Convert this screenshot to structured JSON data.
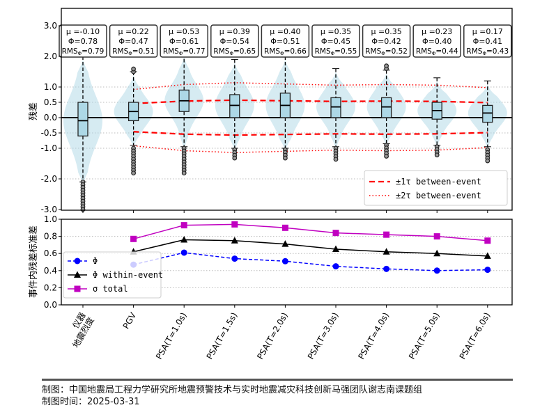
{
  "chart_data": [
    {
      "type": "boxplot-violin",
      "ylabel": "残差",
      "ylim": [
        -3,
        3
      ],
      "yticks": [
        "3.0",
        "2.0",
        "1.0",
        "0.5",
        "0.0",
        "-0.5",
        "-1.0",
        "-2.0",
        "-3.0"
      ],
      "ytick_values": [
        3,
        2,
        1,
        0.5,
        0,
        -0.5,
        -1,
        -2,
        -3
      ],
      "grid": "dotted horizontal at ticks",
      "categories": [
        "仪器\n地震烈度",
        "PGV",
        "PSA(T=1.0s)",
        "PSA(T=1.5s)",
        "PSA(T=2.0s)",
        "PSA(T=3.0s)",
        "PSA(T=4.0s)",
        "PSA(T=5.0s)",
        "PSA(T=6.0s)"
      ],
      "boxes": [
        {
          "q1": -0.6,
          "median": -0.1,
          "q3": 0.5,
          "whislo": -2.1,
          "whishi": 2.0,
          "out_lo": [
            -2.1,
            -3.0
          ],
          "out_hi": []
        },
        {
          "q1": -0.1,
          "median": 0.2,
          "q3": 0.5,
          "whislo": -0.9,
          "whishi": 1.5,
          "out_lo": [
            -1.0,
            -1.9
          ],
          "out_hi": [
            1.5,
            1.65
          ]
        },
        {
          "q1": 0.2,
          "median": 0.55,
          "q3": 0.9,
          "whislo": -0.95,
          "whishi": 2.1,
          "out_lo": [
            -1.0,
            -1.9
          ],
          "out_hi": []
        },
        {
          "q1": 0.0,
          "median": 0.4,
          "q3": 0.75,
          "whislo": -1.0,
          "whishi": 1.9,
          "out_lo": [
            -1.05,
            -1.4
          ],
          "out_hi": []
        },
        {
          "q1": 0.0,
          "median": 0.4,
          "q3": 0.8,
          "whislo": -1.0,
          "whishi": 2.0,
          "out_lo": [
            -1.05,
            -1.4
          ],
          "out_hi": []
        },
        {
          "q1": 0.0,
          "median": 0.35,
          "q3": 0.65,
          "whislo": -0.95,
          "whishi": 1.6,
          "out_lo": [
            -1.0,
            -1.4
          ],
          "out_hi": []
        },
        {
          "q1": 0.0,
          "median": 0.35,
          "q3": 0.65,
          "whislo": -0.85,
          "whishi": 1.55,
          "out_lo": [
            -0.9,
            -1.35
          ],
          "out_hi": [
            1.6,
            1.7
          ]
        },
        {
          "q1": -0.05,
          "median": 0.23,
          "q3": 0.5,
          "whislo": -0.9,
          "whishi": 1.3,
          "out_lo": [
            -0.95,
            -1.3
          ],
          "out_hi": []
        },
        {
          "q1": -0.15,
          "median": 0.15,
          "q3": 0.4,
          "whislo": -0.95,
          "whishi": 1.2,
          "out_lo": [
            -1.05,
            -1.5
          ],
          "out_hi": []
        }
      ],
      "annotations": [
        {
          "mu": "μ =-0.10",
          "phi": "Φ=0.78",
          "rms": "=0.79"
        },
        {
          "mu": "μ =0.22",
          "phi": "Φ=0.47",
          "rms": "=0.51"
        },
        {
          "mu": "μ =0.53",
          "phi": "Φ=0.61",
          "rms": "=0.77"
        },
        {
          "mu": "μ =0.39",
          "phi": "Φ=0.54",
          "rms": "=0.65"
        },
        {
          "mu": "μ =0.40",
          "phi": "Φ=0.51",
          "rms": "=0.66"
        },
        {
          "mu": "μ =0.35",
          "phi": "Φ=0.45",
          "rms": "=0.55"
        },
        {
          "mu": "μ =0.35",
          "phi": "Φ=0.42",
          "rms": "=0.52"
        },
        {
          "mu": "μ =0.23",
          "phi": "Φ=0.40",
          "rms": "=0.44"
        },
        {
          "mu": "μ =0.17",
          "phi": "Φ=0.41",
          "rms": "=0.43"
        }
      ],
      "rms_label": "RMS",
      "rms_sub": "Φ",
      "tau": [
        null,
        0.46,
        0.54,
        0.57,
        0.55,
        0.53,
        0.54,
        0.53,
        0.49
      ],
      "legend": {
        "placement": "lower-right",
        "entries": [
          "±1τ between-event",
          "±2τ between-event"
        ]
      },
      "colors": {
        "violin": "#add8e6",
        "box": "#add8e6",
        "tau": "#ff0000"
      }
    },
    {
      "type": "line",
      "ylabel": "事件内残差标准差",
      "ylim": [
        0,
        1
      ],
      "yticks": [
        "0.0",
        "0.2",
        "0.4",
        "0.6",
        "0.8",
        "1.0"
      ],
      "grid": "dotted horizontal",
      "categories_index_start": 1,
      "series": [
        {
          "name": "Φ",
          "values": [
            0.47,
            0.61,
            0.54,
            0.51,
            0.45,
            0.42,
            0.4,
            0.41
          ],
          "color": "#0000ff",
          "style": "dashed",
          "marker": "circle"
        },
        {
          "name": "Φ within-event",
          "values": [
            0.62,
            0.76,
            0.75,
            0.71,
            0.65,
            0.62,
            0.6,
            0.57
          ],
          "color": "#000000",
          "style": "solid",
          "marker": "triangle"
        },
        {
          "name": "σ total",
          "values": [
            0.77,
            0.93,
            0.94,
            0.9,
            0.84,
            0.82,
            0.8,
            0.75
          ],
          "color": "#c000c0",
          "style": "solid",
          "marker": "square"
        }
      ],
      "legend": {
        "placement": "left"
      }
    }
  ],
  "footer": {
    "credit": "制图：中国地震局工程力学研究所地震预警技术与实时地震减灾科技创新马强团队谢志南课题组",
    "date": "制图时间：2025-03-31"
  }
}
